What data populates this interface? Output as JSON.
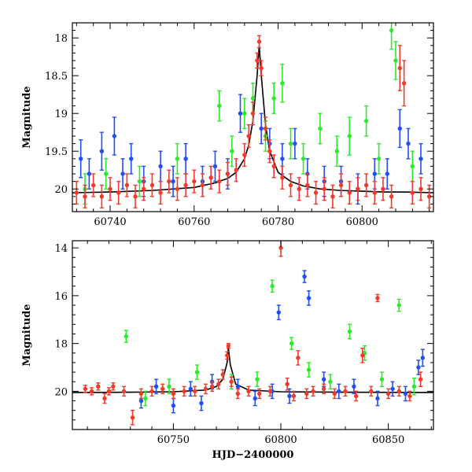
{
  "chart_data": [
    {
      "type": "scatter",
      "title": "",
      "xlabel": "",
      "ylabel": "Magnitude",
      "xlim": [
        60731,
        60817
      ],
      "ylim": [
        20.3,
        17.8
      ],
      "y_inverted": true,
      "grid": false,
      "x_ticks": [
        60740,
        60760,
        60780,
        60800
      ],
      "y_ticks": [
        18,
        18.5,
        19,
        19.5,
        20
      ],
      "model": {
        "name": "",
        "color": "#000000",
        "x": [
          60731,
          60740,
          60750,
          60760,
          60765,
          60768,
          60770,
          60772,
          60773,
          60774,
          60775,
          60775.5,
          60776,
          60777,
          60778,
          60780,
          60783,
          60786,
          60790,
          60795,
          60800,
          60805,
          60810,
          60817
        ],
        "y": [
          20.05,
          20.04,
          20.02,
          19.98,
          19.92,
          19.86,
          19.78,
          19.6,
          19.42,
          19.1,
          18.5,
          18.1,
          18.5,
          19.15,
          19.5,
          19.78,
          19.9,
          19.96,
          20.0,
          20.02,
          20.03,
          20.04,
          20.04,
          20.05
        ]
      },
      "series": [
        {
          "name": "",
          "color": "#1f4ff0",
          "x": [
            60733,
            60735,
            60738,
            60741,
            60743,
            60745,
            60748,
            60752,
            60755,
            60758,
            60762,
            60765,
            60768,
            60771,
            60776,
            60778,
            60781,
            60784,
            60787,
            60791,
            60795,
            60799,
            60803,
            60806,
            60809,
            60811,
            60814
          ],
          "y": [
            19.6,
            19.8,
            19.5,
            19.3,
            19.8,
            19.6,
            19.9,
            19.7,
            19.9,
            19.6,
            19.9,
            19.7,
            19.8,
            19.0,
            19.2,
            19.4,
            19.6,
            19.4,
            19.8,
            19.9,
            19.9,
            20.0,
            19.8,
            19.8,
            19.2,
            19.4,
            19.6
          ],
          "err": [
            0.25,
            0.2,
            0.25,
            0.25,
            0.2,
            0.2,
            0.2,
            0.2,
            0.2,
            0.2,
            0.2,
            0.2,
            0.2,
            0.25,
            0.2,
            0.2,
            0.2,
            0.2,
            0.2,
            0.2,
            0.2,
            0.2,
            0.2,
            0.2,
            0.25,
            0.2,
            0.2
          ]
        },
        {
          "name": "",
          "color": "#2ee82e",
          "x": [
            60734,
            60739,
            60747,
            60756,
            60766,
            60769,
            60772,
            60774,
            60777,
            60779,
            60781,
            60783,
            60786,
            60790,
            60794,
            60797,
            60801,
            60804,
            60807,
            60808,
            60812
          ],
          "y": [
            20.0,
            19.8,
            19.9,
            19.6,
            18.9,
            19.5,
            19.0,
            18.8,
            19.3,
            18.8,
            18.6,
            19.4,
            19.6,
            19.2,
            19.5,
            19.3,
            19.1,
            19.6,
            17.9,
            18.3,
            19.7
          ],
          "err": [
            0.2,
            0.2,
            0.2,
            0.2,
            0.2,
            0.2,
            0.2,
            0.2,
            0.2,
            0.2,
            0.25,
            0.2,
            0.2,
            0.2,
            0.2,
            0.25,
            0.2,
            0.2,
            0.25,
            0.25,
            0.2
          ]
        },
        {
          "name": "",
          "color": "#f03a2a",
          "x": [
            60732,
            60734,
            60736,
            60738,
            60740,
            60742,
            60744,
            60746,
            60748,
            60750,
            60752,
            60754,
            60756,
            60758,
            60760,
            60762,
            60764,
            60766,
            60768,
            60770,
            60772,
            60773,
            60774,
            60775,
            60775.5,
            60776,
            60777,
            60778,
            60779,
            60781,
            60783,
            60785,
            60787,
            60789,
            60791,
            60793,
            60795,
            60797,
            60799,
            60801,
            60803,
            60805,
            60807,
            60809,
            60810,
            60812,
            60814,
            60816
          ],
          "y": [
            20.05,
            20.1,
            19.95,
            20.1,
            20.0,
            20.05,
            19.95,
            20.1,
            20.0,
            19.95,
            20.05,
            19.9,
            20.0,
            19.95,
            19.9,
            19.95,
            19.85,
            19.9,
            19.8,
            19.75,
            19.55,
            19.3,
            19.0,
            18.3,
            18.05,
            18.4,
            19.2,
            19.5,
            19.7,
            19.85,
            19.95,
            20.0,
            19.95,
            20.05,
            20.0,
            20.1,
            19.95,
            20.05,
            20.0,
            19.95,
            20.05,
            20.0,
            20.1,
            18.4,
            18.6,
            20.05,
            20.0,
            20.1
          ],
          "err": [
            0.15,
            0.15,
            0.15,
            0.15,
            0.15,
            0.15,
            0.15,
            0.15,
            0.15,
            0.15,
            0.15,
            0.15,
            0.15,
            0.15,
            0.15,
            0.15,
            0.15,
            0.15,
            0.15,
            0.15,
            0.15,
            0.15,
            0.15,
            0.1,
            0.08,
            0.1,
            0.15,
            0.15,
            0.15,
            0.15,
            0.15,
            0.15,
            0.15,
            0.15,
            0.15,
            0.15,
            0.15,
            0.15,
            0.15,
            0.15,
            0.15,
            0.15,
            0.15,
            0.3,
            0.3,
            0.15,
            0.15,
            0.15
          ]
        }
      ]
    },
    {
      "type": "scatter",
      "title": "",
      "xlabel": "HJD−2400000",
      "ylabel": "Magnitude",
      "xlim": [
        60703,
        60871
      ],
      "ylim": [
        21.6,
        13.7
      ],
      "y_inverted": true,
      "grid": false,
      "x_ticks": [
        60750,
        60800,
        60850
      ],
      "y_ticks": [
        14,
        16,
        18,
        20
      ],
      "model": {
        "name": "",
        "color": "#000000",
        "x": [
          60703,
          60730,
          60750,
          60765,
          60770,
          60773,
          60775,
          60775.6,
          60776.5,
          60779,
          60785,
          60800,
          60830,
          60871
        ],
        "y": [
          20.05,
          20.04,
          20.02,
          19.95,
          19.8,
          19.5,
          18.8,
          18.2,
          18.9,
          19.7,
          19.95,
          20.02,
          20.04,
          20.05
        ]
      },
      "series": [
        {
          "name": "",
          "color": "#1f4ff0",
          "x": [
            60735,
            60742,
            60750,
            60758,
            60763,
            60768,
            60780,
            60788,
            60796,
            60799,
            60804,
            60811,
            60813,
            60820,
            60827,
            60834,
            60845,
            60852,
            60858,
            60864,
            60866
          ],
          "y": [
            20.4,
            19.8,
            20.6,
            19.9,
            20.5,
            19.6,
            19.8,
            20.3,
            20.0,
            16.7,
            20.2,
            15.2,
            16.1,
            19.5,
            20.0,
            19.8,
            20.3,
            19.9,
            20.1,
            19.0,
            18.6
          ],
          "err": [
            0.3,
            0.3,
            0.3,
            0.3,
            0.3,
            0.3,
            0.3,
            0.3,
            0.3,
            0.3,
            0.3,
            0.25,
            0.3,
            0.3,
            0.3,
            0.3,
            0.3,
            0.3,
            0.3,
            0.3,
            0.35
          ]
        },
        {
          "name": "",
          "color": "#2ee82e",
          "x": [
            60728,
            60737,
            60748,
            60761,
            60777,
            60789,
            60796,
            60805,
            60813,
            60823,
            60832,
            60839,
            60847,
            60855,
            60862
          ],
          "y": [
            17.7,
            20.3,
            19.8,
            19.2,
            19.6,
            19.5,
            15.6,
            18.0,
            19.1,
            19.6,
            17.5,
            18.4,
            19.5,
            16.4,
            19.8
          ],
          "err": [
            0.25,
            0.3,
            0.3,
            0.3,
            0.3,
            0.3,
            0.25,
            0.25,
            0.3,
            0.3,
            0.3,
            0.3,
            0.3,
            0.25,
            0.35
          ]
        },
        {
          "name": "",
          "color": "#f03a2a",
          "x": [
            60709,
            60712,
            60715,
            60718,
            60720,
            60722,
            60727,
            60731,
            60735,
            60740,
            60745,
            60750,
            60755,
            60760,
            60765,
            60768,
            60771,
            60773,
            60775,
            60775.6,
            60777,
            60780,
            60785,
            60790,
            60795,
            60800,
            60803,
            60806,
            60808,
            60812,
            60815,
            60820,
            60825,
            60830,
            60835,
            60838,
            60842,
            60845,
            60850,
            60855,
            60860,
            60865
          ],
          "y": [
            19.9,
            20.0,
            19.8,
            20.3,
            20.0,
            19.8,
            20.0,
            21.1,
            20.1,
            20.0,
            19.9,
            20.1,
            20.0,
            20.0,
            19.9,
            19.8,
            19.7,
            19.3,
            18.5,
            18.1,
            19.6,
            20.1,
            20.0,
            20.1,
            20.0,
            14.0,
            19.7,
            20.2,
            18.6,
            20.1,
            20.0,
            19.9,
            20.1,
            20.0,
            20.2,
            18.5,
            20.0,
            16.1,
            20.1,
            20.0,
            20.2,
            19.5
          ],
          "err": [
            0.15,
            0.15,
            0.15,
            0.2,
            0.15,
            0.15,
            0.2,
            0.3,
            0.2,
            0.2,
            0.2,
            0.2,
            0.2,
            0.2,
            0.2,
            0.2,
            0.2,
            0.2,
            0.15,
            0.1,
            0.2,
            0.2,
            0.2,
            0.2,
            0.2,
            0.35,
            0.25,
            0.2,
            0.3,
            0.2,
            0.2,
            0.2,
            0.2,
            0.2,
            0.2,
            0.3,
            0.2,
            0.15,
            0.2,
            0.2,
            0.2,
            0.3
          ]
        }
      ]
    }
  ]
}
